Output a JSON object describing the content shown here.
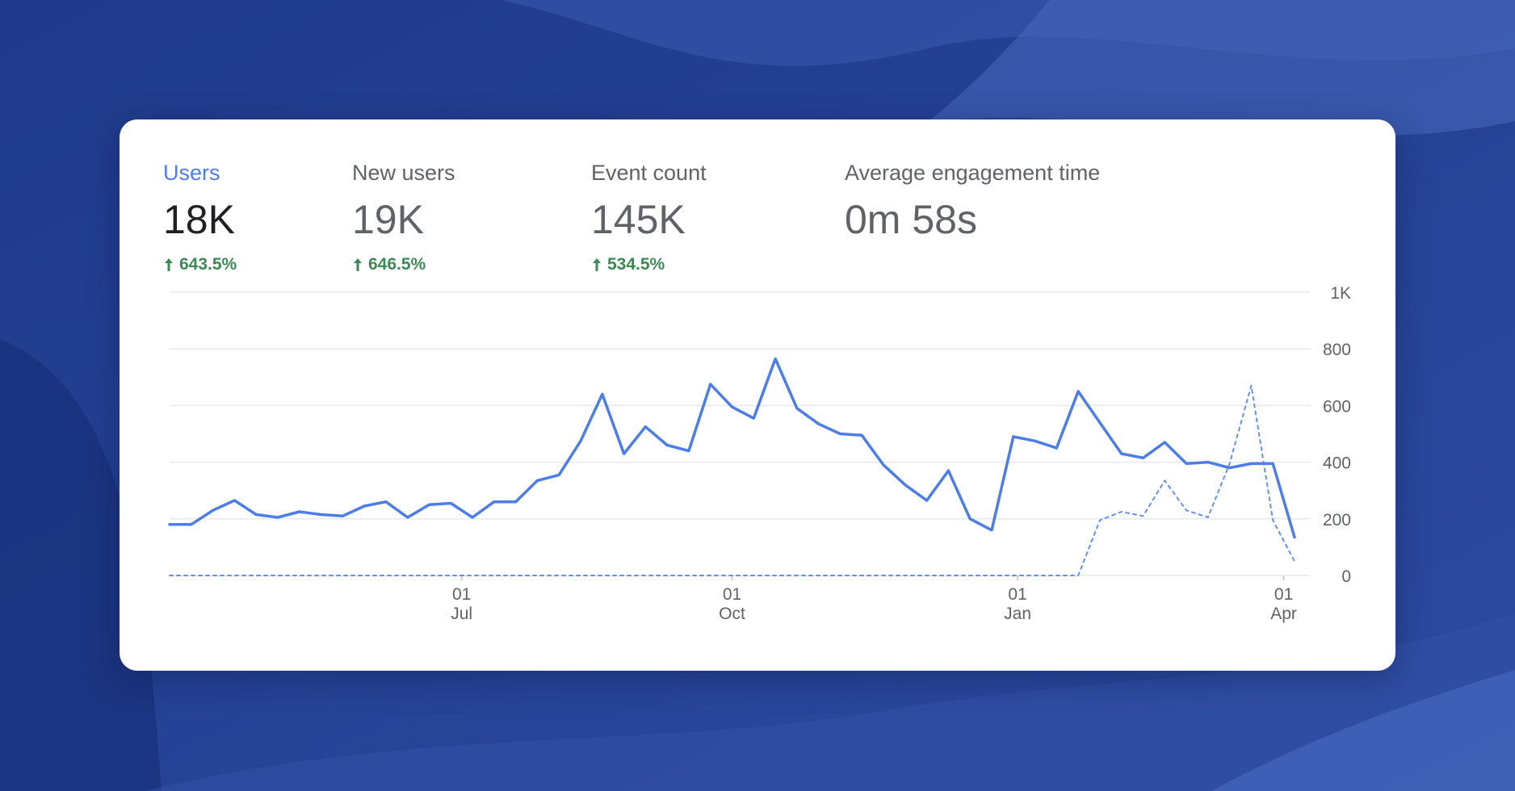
{
  "colors": {
    "background": "#2b4596",
    "card": "#ffffff",
    "accent": "#4d7de6",
    "positive": "#3c8a55",
    "grid": "#e6e8eb"
  },
  "metrics": [
    {
      "label": "Users",
      "value": "18K",
      "delta": "643.5%",
      "delta_icon": "arrow-up-icon",
      "active": true
    },
    {
      "label": "New users",
      "value": "19K",
      "delta": "646.5%",
      "delta_icon": "arrow-up-icon",
      "active": false
    },
    {
      "label": "Event count",
      "value": "145K",
      "delta": "534.5%",
      "delta_icon": "arrow-up-icon",
      "active": false
    },
    {
      "label": "Average engagement time",
      "value": "0m 58s",
      "active": false
    }
  ],
  "chart_data": {
    "type": "line",
    "ylim": [
      0,
      1000
    ],
    "y_ticks": [
      "0",
      "200",
      "400",
      "600",
      "800",
      "1K"
    ],
    "x_ticks": [
      {
        "day": "01",
        "month": "Jul",
        "index": 13.5
      },
      {
        "day": "01",
        "month": "Oct",
        "index": 26
      },
      {
        "day": "01",
        "month": "Jan",
        "index": 39.2
      },
      {
        "day": "01",
        "month": "Apr",
        "index": 51.5
      }
    ],
    "grid": true,
    "series": [
      {
        "style": "solid",
        "values": [
          180,
          180,
          230,
          265,
          215,
          205,
          225,
          215,
          210,
          245,
          260,
          205,
          250,
          255,
          205,
          260,
          260,
          335,
          355,
          475,
          640,
          430,
          525,
          460,
          440,
          675,
          595,
          555,
          765,
          590,
          535,
          500,
          495,
          390,
          320,
          265,
          370,
          200,
          160,
          490,
          475,
          450,
          650,
          540,
          430,
          415,
          470,
          395,
          400,
          380,
          395,
          395,
          135
        ]
      },
      {
        "style": "dashed",
        "values": [
          0,
          0,
          0,
          0,
          0,
          0,
          0,
          0,
          0,
          0,
          0,
          0,
          0,
          0,
          0,
          0,
          0,
          0,
          0,
          0,
          0,
          0,
          0,
          0,
          0,
          0,
          0,
          0,
          0,
          0,
          0,
          0,
          0,
          0,
          0,
          0,
          0,
          0,
          0,
          0,
          0,
          0,
          0,
          195,
          225,
          210,
          335,
          230,
          205,
          395,
          670,
          195,
          50
        ]
      }
    ]
  }
}
